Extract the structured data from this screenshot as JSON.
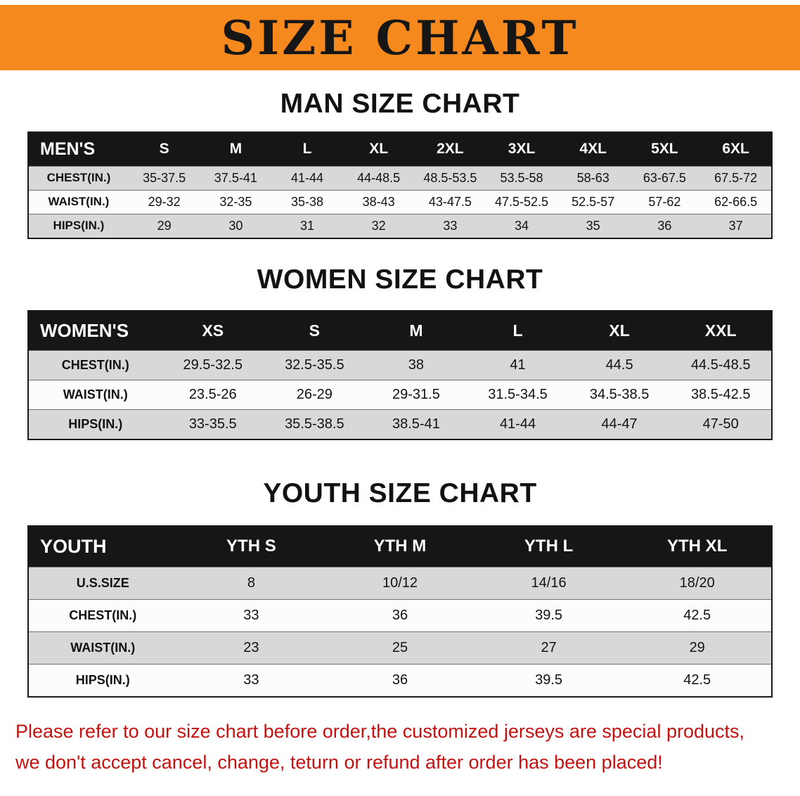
{
  "banner": {
    "title": "SIZE CHART"
  },
  "sections": {
    "men": {
      "heading": "MAN SIZE CHART",
      "table": {
        "header": [
          "MEN'S",
          "S",
          "M",
          "L",
          "XL",
          "2XL",
          "3XL",
          "4XL",
          "5XL",
          "6XL"
        ],
        "rows": [
          [
            "CHEST(IN.)",
            "35-37.5",
            "37.5-41",
            "41-44",
            "44-48.5",
            "48.5-53.5",
            "53.5-58",
            "58-63",
            "63-67.5",
            "67.5-72"
          ],
          [
            "WAIST(IN.)",
            "29-32",
            "32-35",
            "35-38",
            "38-43",
            "43-47.5",
            "47.5-52.5",
            "52.5-57",
            "57-62",
            "62-66.5"
          ],
          [
            "HIPS(IN.)",
            "29",
            "30",
            "31",
            "32",
            "33",
            "34",
            "35",
            "36",
            "37"
          ]
        ]
      }
    },
    "women": {
      "heading": "WOMEN SIZE CHART",
      "table": {
        "header": [
          "WOMEN'S",
          "XS",
          "S",
          "M",
          "L",
          "XL",
          "XXL"
        ],
        "rows": [
          [
            "CHEST(IN.)",
            "29.5-32.5",
            "32.5-35.5",
            "38",
            "41",
            "44.5",
            "44.5-48.5"
          ],
          [
            "WAIST(IN.)",
            "23.5-26",
            "26-29",
            "29-31.5",
            "31.5-34.5",
            "34.5-38.5",
            "38.5-42.5"
          ],
          [
            "HIPS(IN.)",
            "33-35.5",
            "35.5-38.5",
            "38.5-41",
            "41-44",
            "44-47",
            "47-50"
          ]
        ]
      }
    },
    "youth": {
      "heading": "YOUTH SIZE CHART",
      "table": {
        "header": [
          "YOUTH",
          "YTH S",
          "YTH M",
          "YTH L",
          "YTH XL"
        ],
        "rows": [
          [
            "U.S.SIZE",
            "8",
            "10/12",
            "14/16",
            "18/20"
          ],
          [
            "CHEST(IN.)",
            "33",
            "36",
            "39.5",
            "42.5"
          ],
          [
            "WAIST(IN.)",
            "23",
            "25",
            "27",
            "29"
          ],
          [
            "HIPS(IN.)",
            "33",
            "36",
            "39.5",
            "42.5"
          ]
        ]
      }
    }
  },
  "footer": {
    "line1": "Please refer to our size chart before order,the customized jerseys are special products,",
    "line2": "we don't accept cancel, change, teturn or refund after order has been placed!"
  },
  "colors": {
    "accent_orange": "#f6891d",
    "table_header_bg": "#161616",
    "row_gray": "#d8d8d8",
    "row_white": "#fcfcfc",
    "notice_red": "#c31210",
    "text_black": "#121212"
  }
}
